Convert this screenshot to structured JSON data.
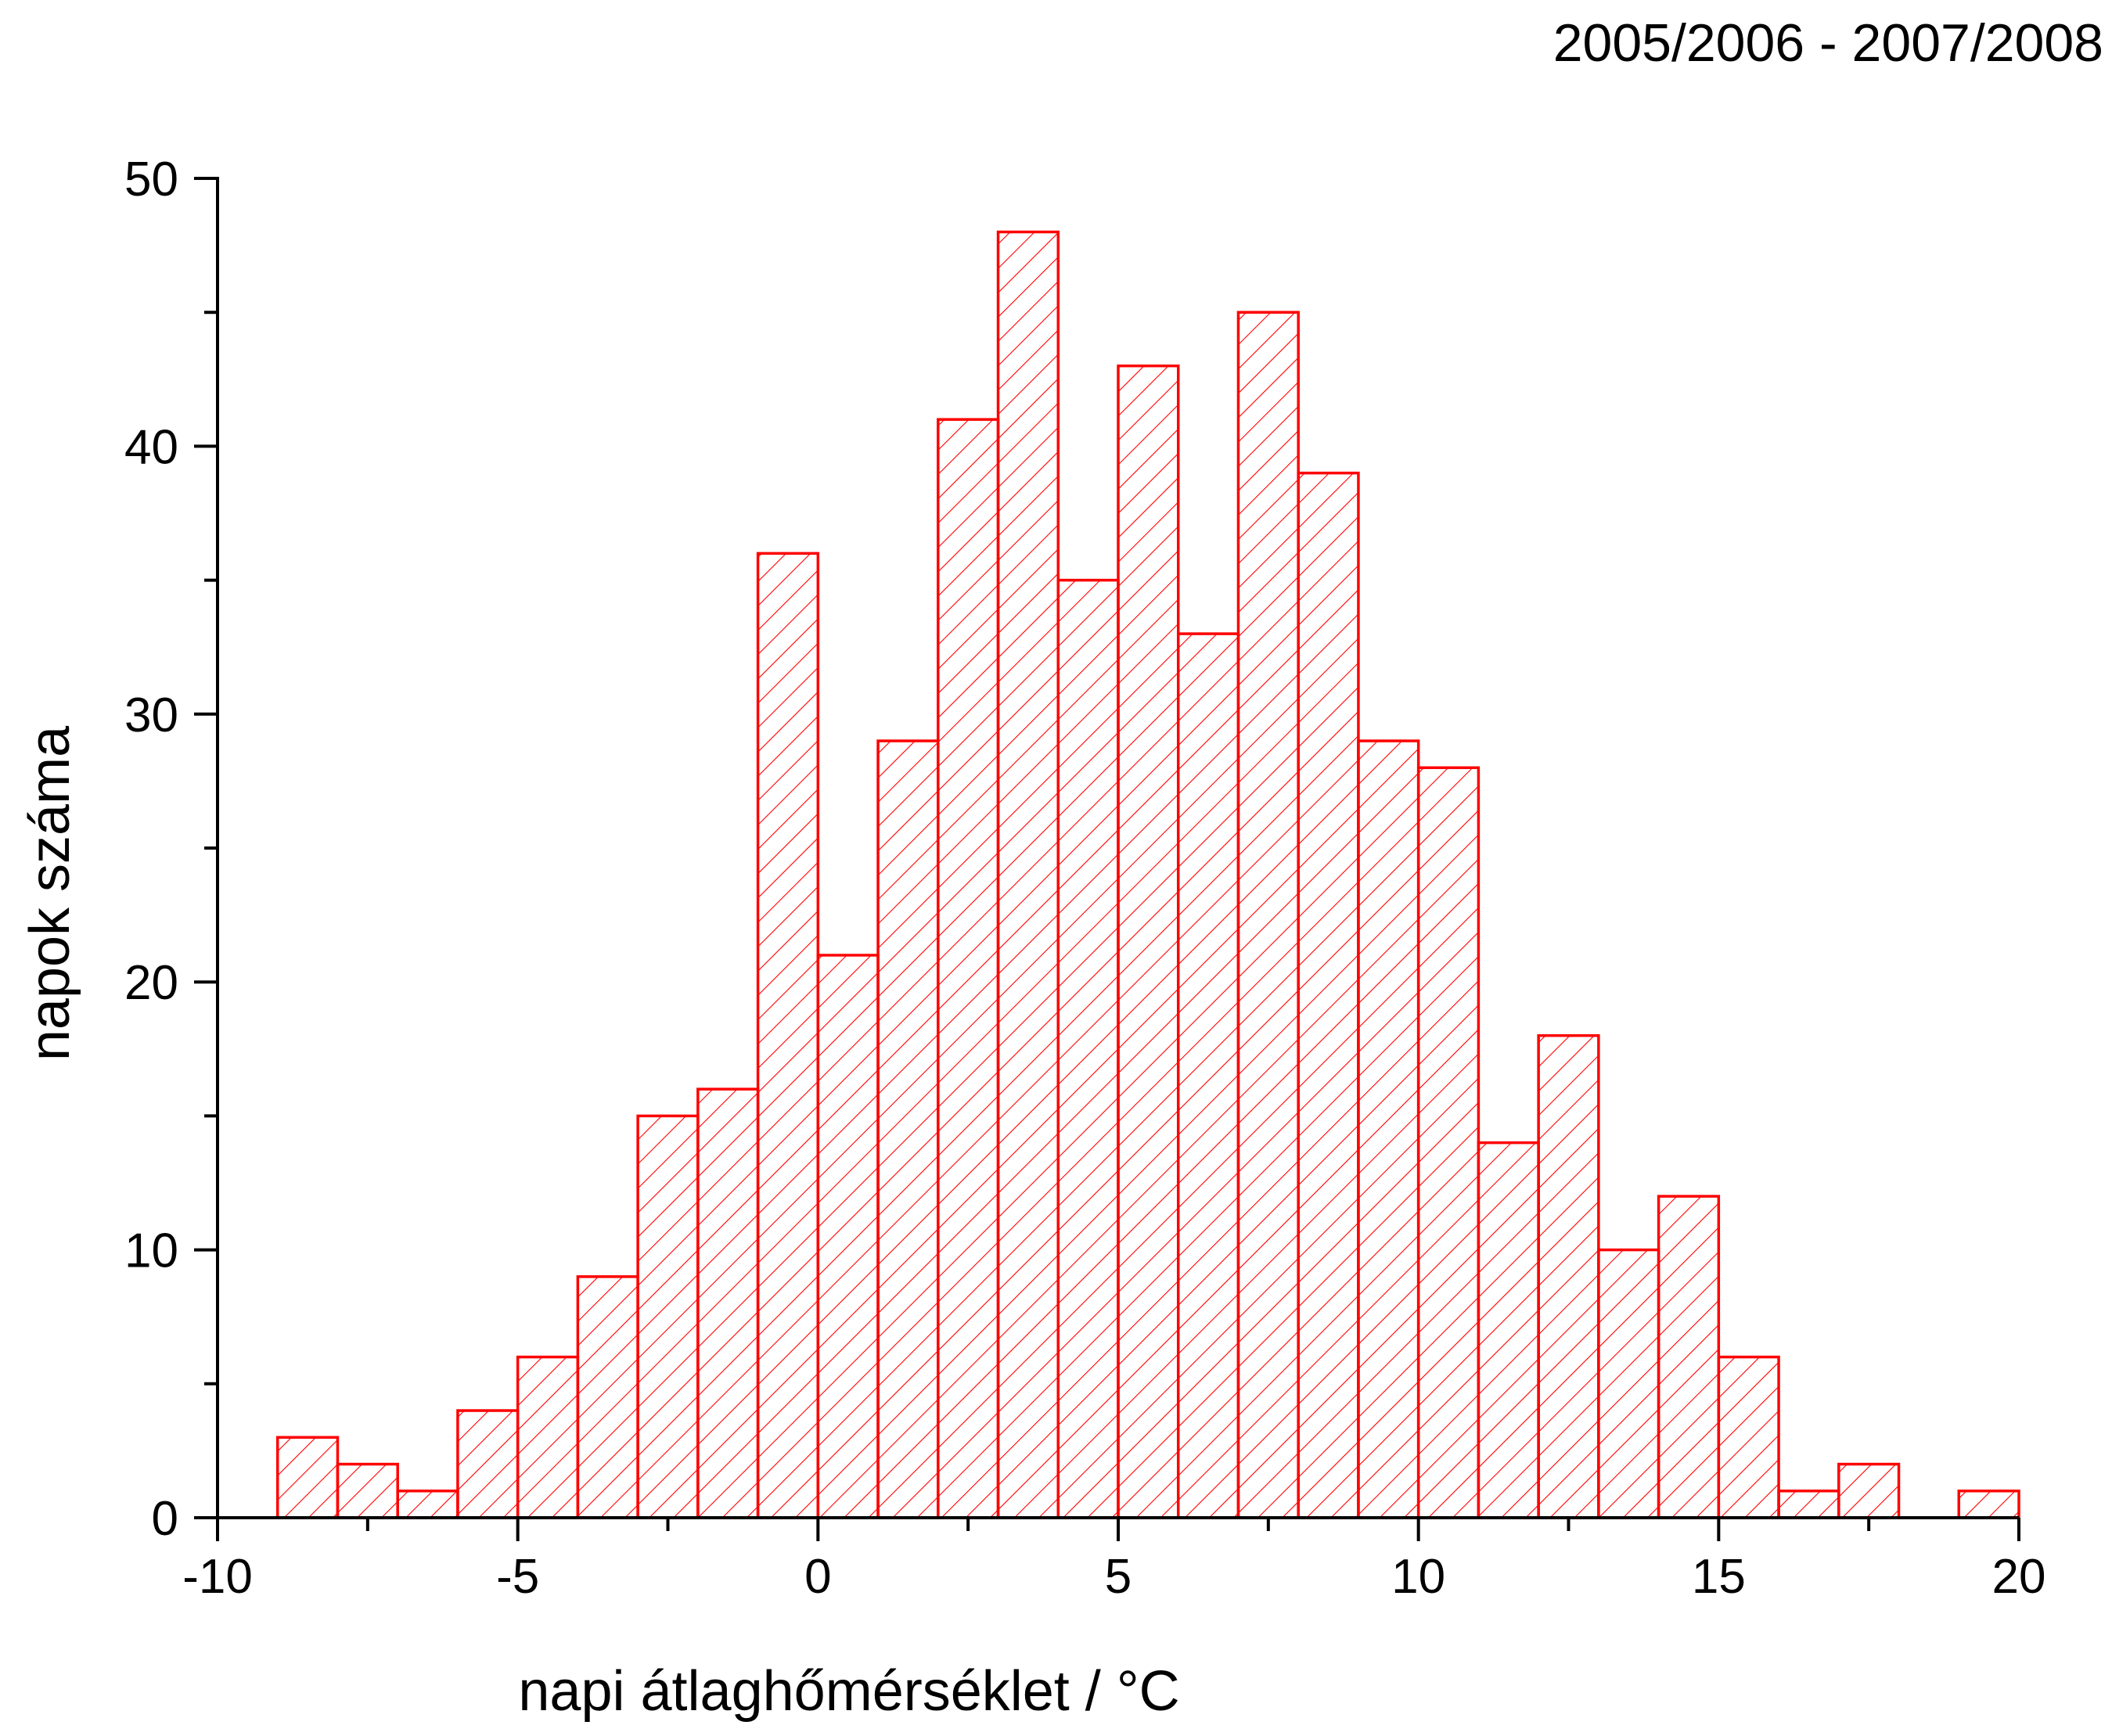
{
  "chart_data": {
    "type": "bar",
    "title": "2005/2006 - 2007/2008",
    "xlabel": "napi átlaghőmérséklet / °C",
    "ylabel": "napok száma",
    "bin_width": 1,
    "bins": [
      {
        "x0": -9,
        "x1": -8,
        "value": 3
      },
      {
        "x0": -8,
        "x1": -7,
        "value": 2
      },
      {
        "x0": -7,
        "x1": -6,
        "value": 1
      },
      {
        "x0": -6,
        "x1": -5,
        "value": 4
      },
      {
        "x0": -5,
        "x1": -4,
        "value": 6
      },
      {
        "x0": -4,
        "x1": -3,
        "value": 9
      },
      {
        "x0": -3,
        "x1": -2,
        "value": 15
      },
      {
        "x0": -2,
        "x1": -1,
        "value": 16
      },
      {
        "x0": -1,
        "x1": 0,
        "value": 36
      },
      {
        "x0": 0,
        "x1": 1,
        "value": 21
      },
      {
        "x0": 1,
        "x1": 2,
        "value": 29
      },
      {
        "x0": 2,
        "x1": 3,
        "value": 41
      },
      {
        "x0": 3,
        "x1": 4,
        "value": 48
      },
      {
        "x0": 4,
        "x1": 5,
        "value": 35
      },
      {
        "x0": 5,
        "x1": 6,
        "value": 43
      },
      {
        "x0": 6,
        "x1": 7,
        "value": 33
      },
      {
        "x0": 7,
        "x1": 8,
        "value": 45
      },
      {
        "x0": 8,
        "x1": 9,
        "value": 39
      },
      {
        "x0": 9,
        "x1": 10,
        "value": 29
      },
      {
        "x0": 10,
        "x1": 11,
        "value": 28
      },
      {
        "x0": 11,
        "x1": 12,
        "value": 14
      },
      {
        "x0": 12,
        "x1": 13,
        "value": 18
      },
      {
        "x0": 13,
        "x1": 14,
        "value": 10
      },
      {
        "x0": 14,
        "x1": 15,
        "value": 12
      },
      {
        "x0": 15,
        "x1": 16,
        "value": 6
      },
      {
        "x0": 16,
        "x1": 17,
        "value": 1
      },
      {
        "x0": 17,
        "x1": 18,
        "value": 2
      },
      {
        "x0": 19,
        "x1": 20,
        "value": 1
      }
    ],
    "xlim": [
      -10,
      20
    ],
    "ylim": [
      0,
      50
    ],
    "xticks": [
      -10,
      -5,
      0,
      5,
      10,
      15,
      20
    ],
    "xtick_labels": [
      "-10",
      "-5",
      "0",
      "5",
      "10",
      "15",
      "20"
    ],
    "yticks": [
      0,
      10,
      20,
      30,
      40,
      50
    ],
    "ytick_labels": [
      "0",
      "10",
      "20",
      "30",
      "40",
      "50"
    ],
    "bar_color": "#ff0000",
    "bar_fill": "hatched",
    "grid": false
  }
}
